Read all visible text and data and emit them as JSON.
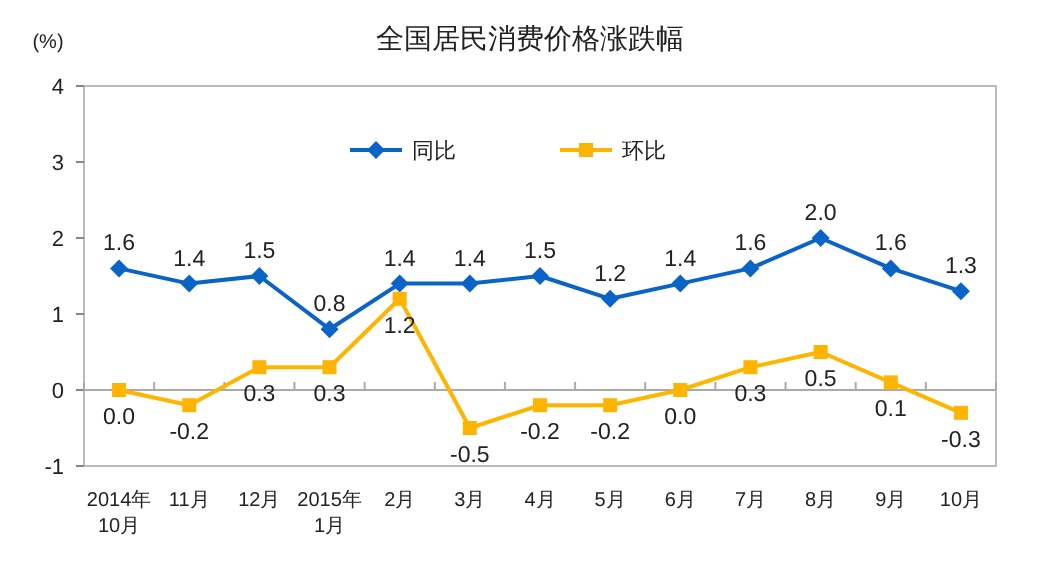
{
  "chart_data": {
    "type": "line",
    "title": "全国居民消费价格涨跌幅",
    "ylabel": "(%)",
    "categories": [
      "2014年\n10月",
      "11月",
      "12月",
      "2015年\n1月",
      "2月",
      "3月",
      "4月",
      "5月",
      "6月",
      "7月",
      "8月",
      "9月",
      "10月"
    ],
    "series": [
      {
        "name": "同比",
        "color": "#0a64c8",
        "marker": "diamond",
        "values": [
          1.6,
          1.4,
          1.5,
          0.8,
          1.4,
          1.4,
          1.5,
          1.2,
          1.4,
          1.6,
          2.0,
          1.6,
          1.3
        ],
        "value_labels": [
          "1.6",
          "1.4",
          "1.5",
          "0.8",
          "1.4",
          "1.4",
          "1.5",
          "1.2",
          "1.4",
          "1.6",
          "2.0",
          "1.6",
          "1.3"
        ]
      },
      {
        "name": "环比",
        "color": "#ffb400",
        "marker": "square",
        "values": [
          0.0,
          -0.2,
          0.3,
          0.3,
          1.2,
          -0.5,
          -0.2,
          -0.2,
          0.0,
          0.3,
          0.5,
          0.1,
          -0.3
        ],
        "value_labels": [
          "0.0",
          "-0.2",
          "0.3",
          "0.3",
          "1.2",
          "-0.5",
          "-0.2",
          "-0.2",
          "0.0",
          "0.3",
          "0.5",
          "0.1",
          "-0.3"
        ]
      }
    ],
    "ylim": [
      -1,
      4
    ],
    "yticks": [
      -1,
      0,
      1,
      2,
      3,
      4
    ],
    "legend": "top"
  }
}
